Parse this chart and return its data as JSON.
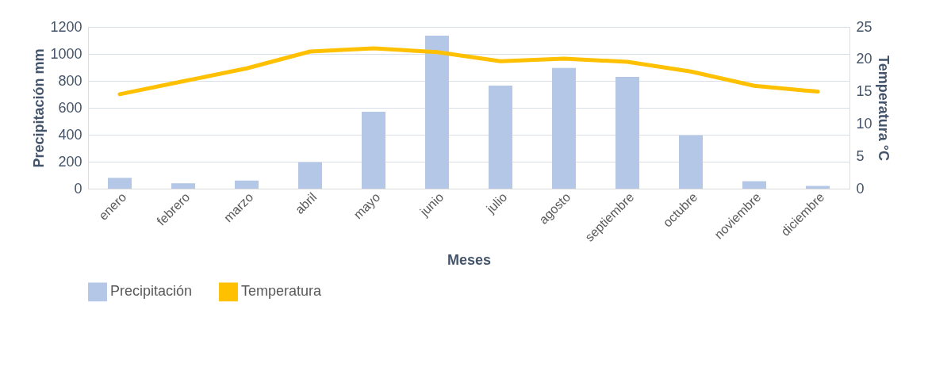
{
  "chart_data": {
    "type": "bar",
    "xlabel": "Meses",
    "ylabel": "Precipitación mm",
    "y2label": "Temperatura °C",
    "categories": [
      "enero",
      "febrero",
      "marzo",
      "abril",
      "mayo",
      "junio",
      "julio",
      "agosto",
      "septiembre",
      "octubre",
      "noviembre",
      "diciembre"
    ],
    "series": [
      {
        "name": "Precipitación",
        "color": "#b4c7e7",
        "values": [
          80,
          40,
          60,
          195,
          570,
          1135,
          765,
          895,
          830,
          395,
          55,
          20
        ]
      },
      {
        "name": "Temperatura",
        "type": "line",
        "axis": "y2",
        "color": "#ffc000",
        "values": [
          14.6,
          16.6,
          18.6,
          21.2,
          21.7,
          21.1,
          19.7,
          20.1,
          19.6,
          18.1,
          15.9,
          15.0
        ]
      }
    ],
    "ylim": [
      0,
      1200
    ],
    "yticks": [
      0,
      200,
      400,
      600,
      800,
      1000,
      1200
    ],
    "y2lim": [
      0,
      25
    ],
    "y2ticks": [
      0,
      5,
      10,
      15,
      20,
      25
    ],
    "grid": "y",
    "legend": "bottom",
    "marker": "none",
    "line_style": "solid"
  }
}
